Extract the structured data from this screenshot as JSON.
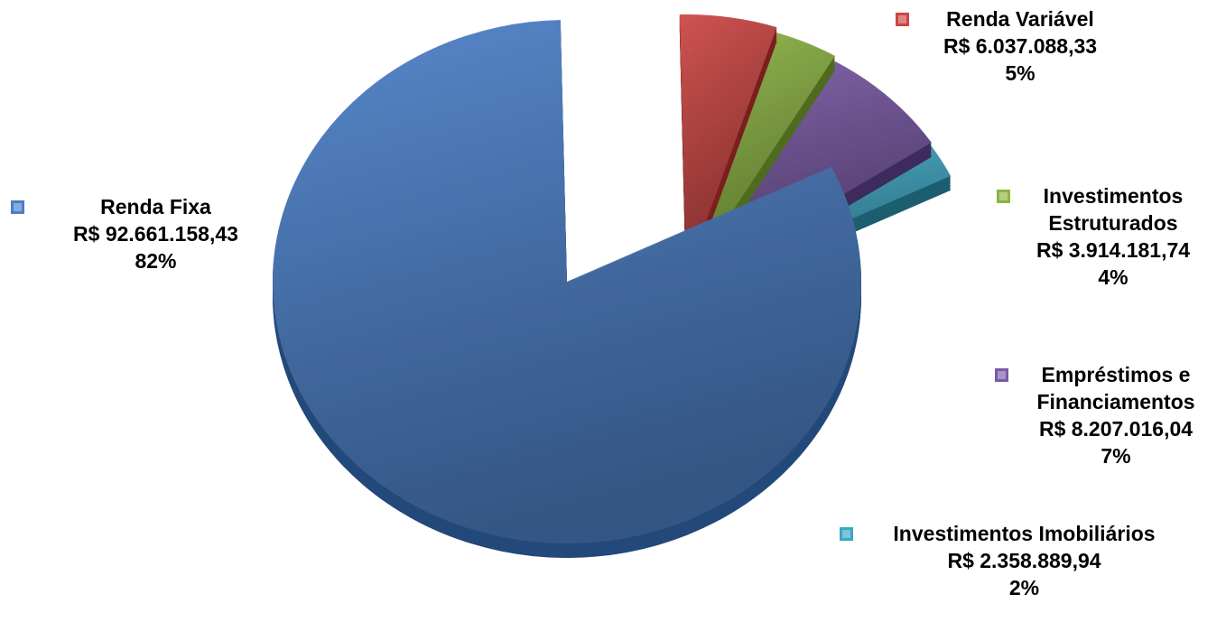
{
  "chart_data": {
    "type": "pie",
    "style": "3d-exploded",
    "legend_placement": "labels-beside-slices",
    "slices": [
      {
        "label": "Renda Fixa",
        "value": 92661158.43,
        "value_text": "R$ 92.661.158,43",
        "percent": 82,
        "percent_text": "82%",
        "color": "#4a7fc8",
        "dark": "#23487a"
      },
      {
        "label": "Renda Variável",
        "value": 6037088.33,
        "value_text": "R$ 6.037.088,33",
        "percent": 5,
        "percent_text": "5%",
        "color": "#cc4543",
        "dark": "#7a1f1d"
      },
      {
        "label": "Investimentos Estruturados",
        "value": 3914181.74,
        "value_text": "R$ 3.914.181,74",
        "percent": 4,
        "percent_text": "4%",
        "color": "#8cb442",
        "dark": "#4f6b1e"
      },
      {
        "label": "Empréstimos e Financiamentos",
        "value": 8207016.04,
        "value_text": "R$ 8.207.016,04",
        "percent": 7,
        "percent_text": "7%",
        "color": "#7a5aa6",
        "dark": "#3f2a5c"
      },
      {
        "label": "Investimentos Imobiliários",
        "value": 2358889.94,
        "value_text": "R$ 2.358.889,94",
        "percent": 2,
        "percent_text": "2%",
        "color": "#3aa7c4",
        "dark": "#1c5d70"
      }
    ]
  }
}
